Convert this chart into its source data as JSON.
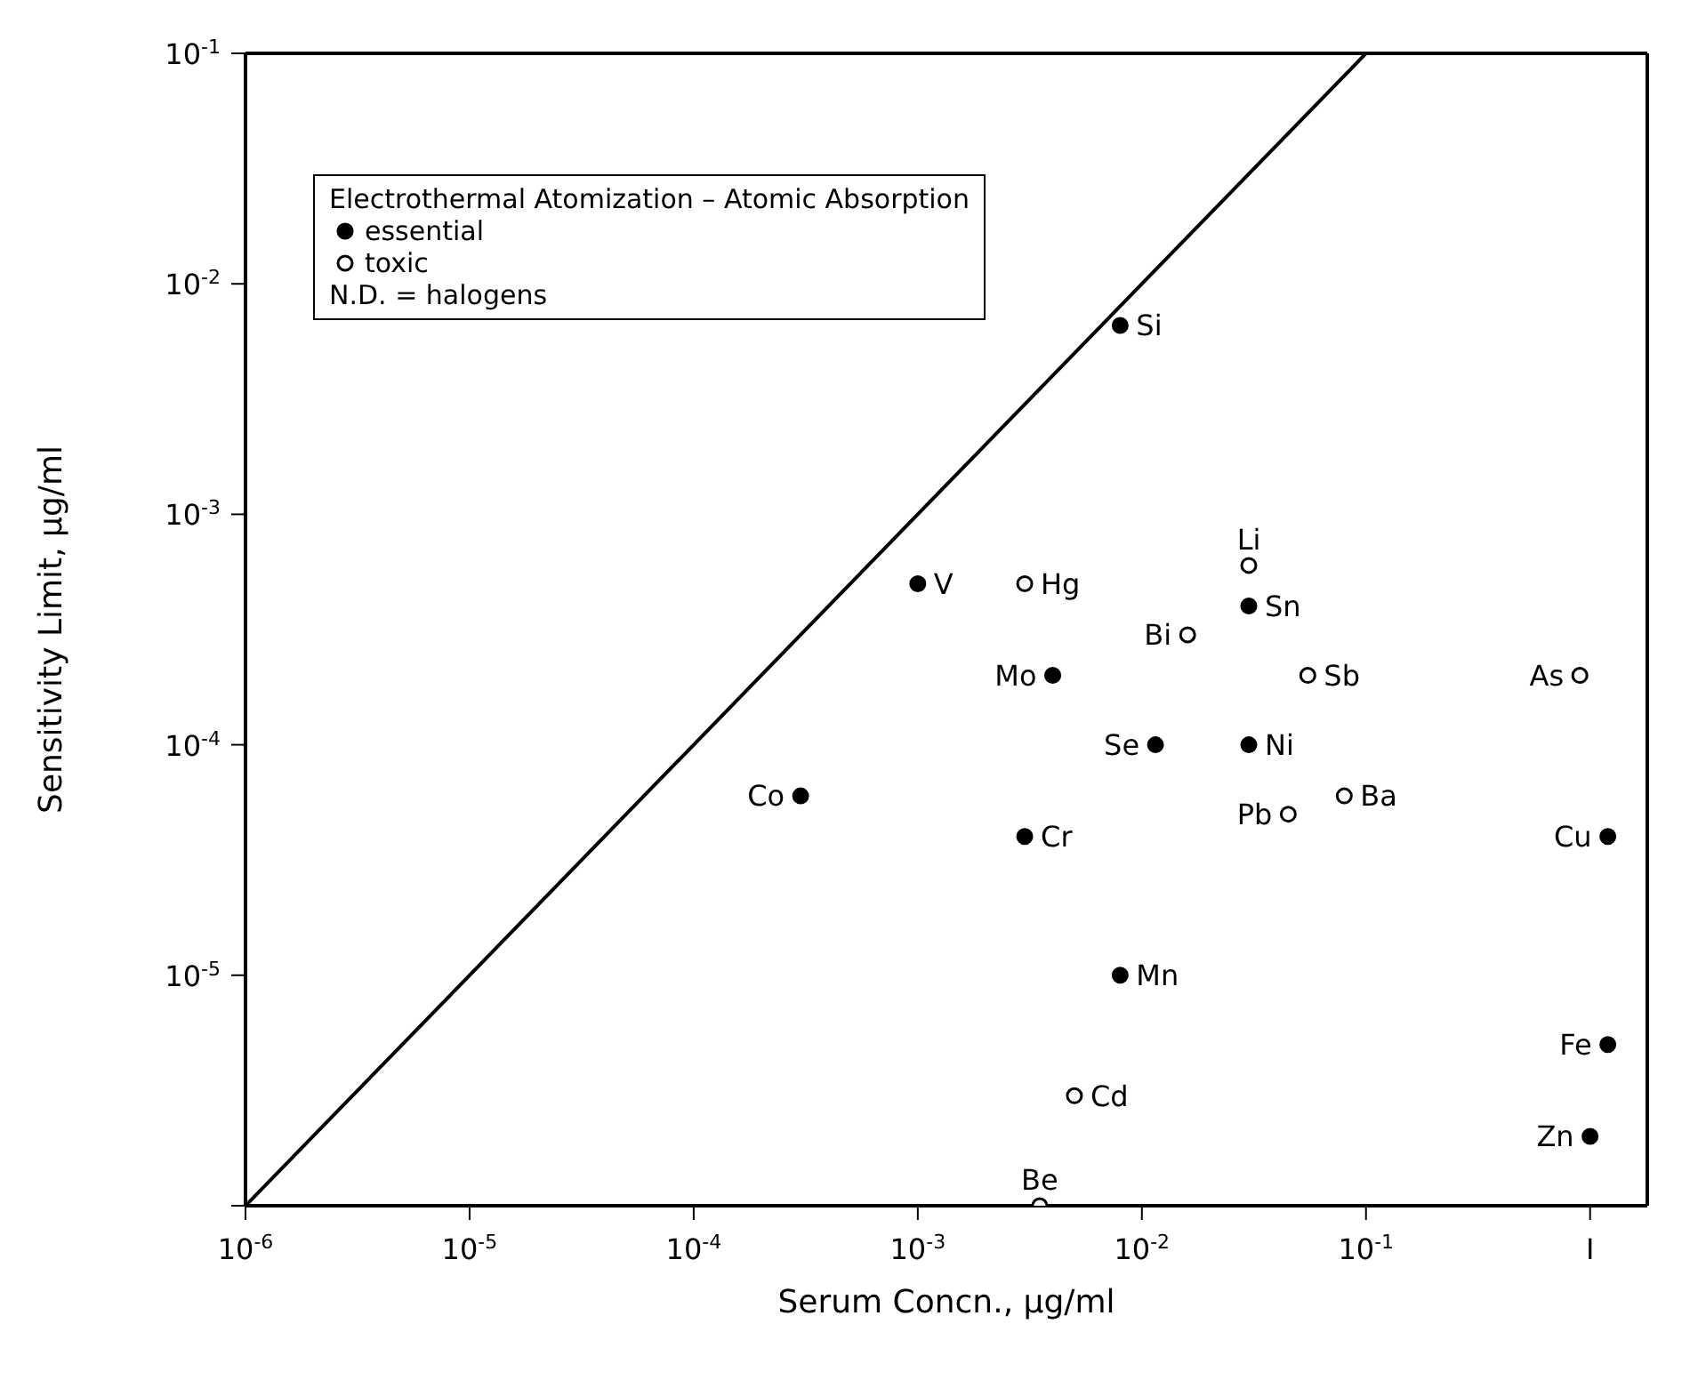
{
  "chart_data": {
    "type": "scatter",
    "xlabel": "Serum Concn., μg/ml",
    "ylabel": "Sensitivity Limit, μg/ml",
    "legend_title": "Electrothermal Atomization – Atomic Absorption",
    "legend": "top left",
    "log": "xy",
    "xlim": [
      1e-06,
      1.8
    ],
    "ylim": [
      1e-06,
      0.1
    ],
    "xticks": [
      {
        "value": 1e-06,
        "label": "10$^{-6}$"
      },
      {
        "value": 1e-05,
        "label": "10$^{-5}$"
      },
      {
        "value": 0.0001,
        "label": "10$^{-4}$"
      },
      {
        "value": 0.001,
        "label": "10$^{-3}$"
      },
      {
        "value": 0.01,
        "label": "10$^{-2}$"
      },
      {
        "value": 0.1,
        "label": "10$^{-1}$"
      },
      {
        "value": 1,
        "label": "I"
      }
    ],
    "yticks": [
      {
        "value": 1e-06,
        "label": null
      },
      {
        "value": 1e-05,
        "label": "10$^{-5}$"
      },
      {
        "value": 0.0001,
        "label": "10$^{-4}$"
      },
      {
        "value": 0.001,
        "label": "10$^{-3}$"
      },
      {
        "value": 0.01,
        "label": "10$^{-2}$"
      },
      {
        "value": 0.1,
        "label": "10$^{-1}$"
      }
    ],
    "series": [
      {
        "name": "essential",
        "marker": "circle",
        "color": "#000000",
        "x": [
          0.008,
          0.001,
          0.03,
          0.004,
          0.0115,
          0.03,
          0.0003,
          0.003,
          1.2,
          0.008,
          1.2,
          1
        ],
        "values": [
          0.0066,
          0.0005,
          0.0004,
          0.0002,
          0.0001,
          0.0001,
          6e-05,
          4e-05,
          4e-05,
          1e-05,
          5e-06,
          2e-06
        ]
      },
      {
        "name": "toxic",
        "marker": "circle",
        "color": "#000000",
        "x": [
          0.003,
          0.03,
          0.016,
          0.055,
          0.9,
          0.08,
          0.045,
          0.005,
          0.0035
        ],
        "values": [
          0.0005,
          0.0006,
          0.0003,
          0.0002,
          0.0002,
          6e-05,
          5e-05,
          3e-06,
          1e-06
        ]
      },
      {
        "type": "line",
        "color": "#000000",
        "x": [
          1e-06,
          0.1
        ],
        "values": [
          1e-06,
          0.1
        ]
      }
    ],
    "annotations": [
      "N.D. = halogens",
      {
        "text": "Si",
        "x": 0.008,
        "y": 0.0066
      },
      {
        "text": "V",
        "x": 0.001,
        "y": 0.0005
      },
      {
        "text": "Sn",
        "x": 0.03,
        "y": 0.0004
      },
      {
        "text": "Mo",
        "x": 0.004,
        "y": 0.0002
      },
      {
        "text": "Se",
        "x": 0.0115,
        "y": 0.0001
      },
      {
        "text": "Ni",
        "x": 0.03,
        "y": 0.0001
      },
      {
        "text": "Co",
        "x": 0.0003,
        "y": 6e-05
      },
      {
        "text": "Cr",
        "x": 0.003,
        "y": 4e-05
      },
      {
        "text": "Cu",
        "x": 1.2,
        "y": 4e-05
      },
      {
        "text": "Mn",
        "x": 0.008,
        "y": 1e-05
      },
      {
        "text": "Fe",
        "x": 1.2,
        "y": 5e-06
      },
      {
        "text": "Zn",
        "x": 1,
        "y": 2e-06
      },
      {
        "text": "Hg",
        "x": 0.003,
        "y": 0.0005
      },
      {
        "text": "Li",
        "x": 0.03,
        "y": 0.0006
      },
      {
        "text": "Bi",
        "x": 0.016,
        "y": 0.0003
      },
      {
        "text": "Sb",
        "x": 0.055,
        "y": 0.0002
      },
      {
        "text": "As",
        "x": 0.9,
        "y": 0.0002
      },
      {
        "text": "Ba",
        "x": 0.08,
        "y": 6e-05
      },
      {
        "text": "Pb",
        "x": 0.045,
        "y": 5e-05
      },
      {
        "text": "Cd",
        "x": 0.005,
        "y": 3e-06
      },
      {
        "text": "Be",
        "x": 0.0035,
        "y": 1e-06
      }
    ]
  }
}
